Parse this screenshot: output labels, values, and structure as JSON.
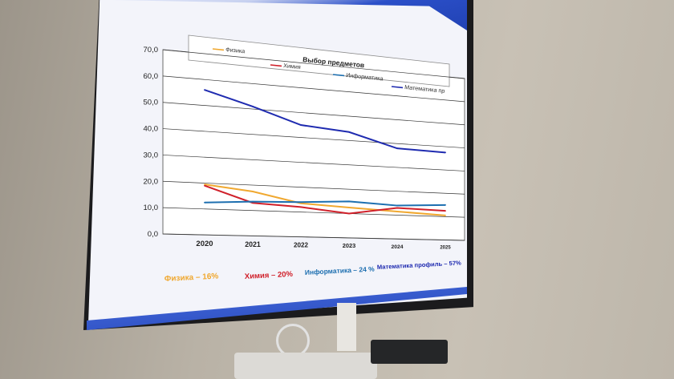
{
  "chart_data": {
    "type": "line",
    "title": "Выбор предметов",
    "x": [
      "2020",
      "2021",
      "2022",
      "2023",
      "2024",
      "2025"
    ],
    "ylim": [
      0,
      70
    ],
    "yticks": [
      "0,0",
      "10,0",
      "20,0",
      "30,0",
      "40,0",
      "50,0",
      "60,0",
      "70,0"
    ],
    "grid": true,
    "legend_position": "top",
    "series": [
      {
        "name": "Физика",
        "color": "#f0a830",
        "values": [
          19.5,
          17.5,
          13.5,
          12.5,
          11.5,
          10.5
        ]
      },
      {
        "name": "Химия",
        "color": "#d0202a",
        "values": [
          19.0,
          13.0,
          12.0,
          10.0,
          13.0,
          12.5
        ]
      },
      {
        "name": "Информатика",
        "color": "#1d6fb0",
        "values": [
          12.5,
          13.5,
          14.0,
          15.0,
          14.0,
          15.0
        ]
      },
      {
        "name": "Математика пр",
        "color": "#1f2bb0",
        "values": [
          56.0,
          51.0,
          45.0,
          43.5,
          38.0,
          37.5
        ]
      }
    ]
  },
  "footer_stats": [
    {
      "text": "Физика – 16%",
      "color": "#f0a830"
    },
    {
      "text": "Химия – 20%",
      "color": "#d0202a"
    },
    {
      "text": "Информатика – 24 %",
      "color": "#1d6fb0"
    },
    {
      "text": "Математика профиль – 57%",
      "color": "#1f2bb0"
    }
  ]
}
